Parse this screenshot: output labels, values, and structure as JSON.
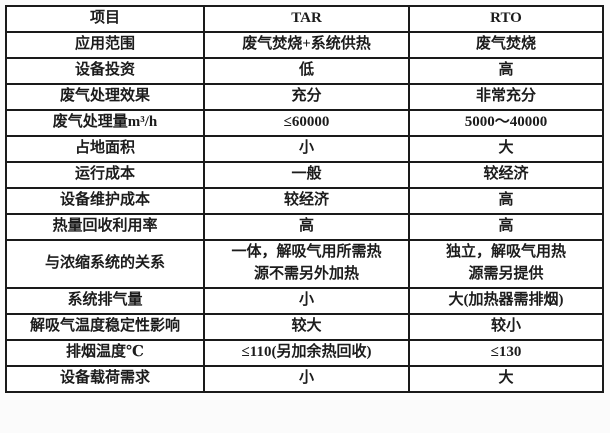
{
  "colors": {
    "border": "#1a1a1a",
    "text": "#1c1c1c",
    "cell_background": "#ffffff"
  },
  "table": {
    "headers": [
      "项目",
      "TAR",
      "RTO"
    ],
    "rows": [
      [
        "应用范围",
        "废气焚烧+系统供热",
        "废气焚烧"
      ],
      [
        "设备投资",
        "低",
        "高"
      ],
      [
        "废气处理效果",
        "充分",
        "非常充分"
      ],
      [
        "废气处理量m³/h",
        "≤60000",
        "5000～40000"
      ],
      [
        "占地面积",
        "小",
        "大"
      ],
      [
        "运行成本",
        "一般",
        "较经济"
      ],
      [
        "设备维护成本",
        "较经济",
        "高"
      ],
      [
        "热量回收利用率",
        "高",
        "高"
      ],
      [
        "与浓缩系统的关系",
        "一体，解吸气用所需热\n源不需另外加热",
        "独立，解吸气用热\n源需另提供"
      ],
      [
        "系统排气量",
        "小",
        "大(加热器需排烟)"
      ],
      [
        "解吸气温度稳定性影响",
        "较大",
        "较小"
      ],
      [
        "排烟温度℃",
        "≤110(另加余热回收)",
        "≤130"
      ],
      [
        "设备载荷需求",
        "小",
        "大"
      ]
    ]
  }
}
